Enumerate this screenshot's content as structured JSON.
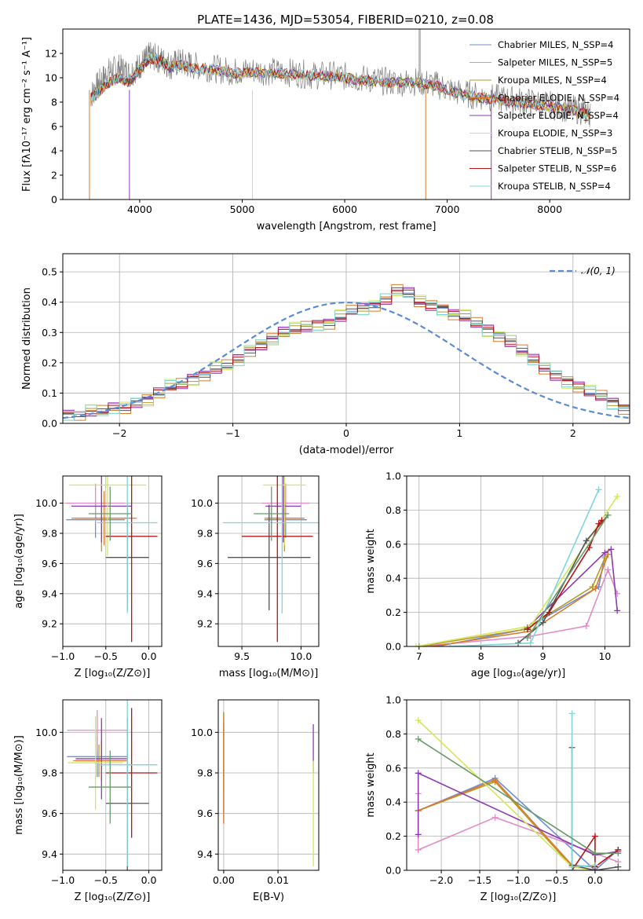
{
  "figure_title": "PLATE=1436, MJD=53054, FIBERID=0210, z=0.08",
  "colors": [
    "#6f8fd6",
    "#e28bc6",
    "#b59a2a",
    "#d97b2c",
    "#8e3bb3",
    "#d6e65a",
    "#555555",
    "#b01818",
    "#7ed6dc",
    "#6a9a6a"
  ],
  "chart_data": [
    {
      "id": "spectrum",
      "type": "line",
      "xlabel": "wavelength [Angstrom, rest frame]",
      "ylabel": "Flux [fλ10⁻¹⁷ erg cm⁻² s⁻¹ A⁻¹]",
      "xlim": [
        3250,
        8780
      ],
      "ylim": [
        0,
        14
      ],
      "xticks": [
        4000,
        5000,
        6000,
        7000,
        8000
      ],
      "yticks": [
        0,
        2,
        4,
        6,
        8,
        10,
        12
      ],
      "grid": false,
      "legend_position": "top-right",
      "legend": [
        "Chabrier MILES, N_SSP=4",
        "Salpeter MILES, N_SSP=5",
        "Kroupa MILES, N_SSP=4",
        "Chabrier ELODIE, N_SSP=4",
        "Salpeter ELODIE, N_SSP=4",
        "Kroupa ELODIE, N_SSP=3",
        "Chabrier STELIB, N_SSP=5",
        "Salpeter STELIB, N_SSP=6",
        "Kroupa STELIB, N_SSP=4"
      ],
      "data_curve": {
        "x": [
          3520,
          3600,
          3700,
          3800,
          3900,
          4000,
          4100,
          4200,
          4300,
          4400,
          4500,
          4700,
          4900,
          5100,
          5300,
          5500,
          5700,
          5900,
          6100,
          6300,
          6500,
          6700,
          6900,
          7100,
          7300,
          7500,
          7700,
          7900,
          8100,
          8300,
          8400
        ],
        "y": [
          8.5,
          9.5,
          10.5,
          10.8,
          10.3,
          11.0,
          11.8,
          11.5,
          11.0,
          11.3,
          11.0,
          10.8,
          10.5,
          10.6,
          10.5,
          10.4,
          10.2,
          10.2,
          10.0,
          9.8,
          9.6,
          9.7,
          9.4,
          8.8,
          8.5,
          8.3,
          8.1,
          7.9,
          7.6,
          7.3,
          7.1
        ]
      },
      "model_curve": {
        "x": [
          3520,
          3600,
          3700,
          3800,
          3900,
          4000,
          4100,
          4200,
          4300,
          4400,
          4500,
          4700,
          4900,
          5100,
          5300,
          5500,
          5700,
          5900,
          6100,
          6300,
          6500,
          6700,
          6900,
          7100,
          7300,
          7500,
          7700,
          7900,
          8100,
          8300,
          8400
        ],
        "y": [
          8.3,
          8.8,
          9.6,
          10.0,
          9.6,
          10.7,
          11.6,
          11.4,
          10.9,
          11.1,
          10.8,
          10.7,
          10.4,
          10.4,
          10.4,
          10.3,
          10.2,
          10.1,
          9.9,
          9.7,
          9.6,
          9.6,
          9.3,
          8.7,
          8.4,
          8.2,
          8.0,
          7.8,
          7.5,
          7.2,
          7.0
        ]
      }
    },
    {
      "id": "residuals",
      "type": "step",
      "xlabel": "(data-model)/error",
      "ylabel": "Normed distribution",
      "xlim": [
        -2.5,
        2.5
      ],
      "ylim": [
        0,
        0.56
      ],
      "xticks": [
        -2,
        -1,
        0,
        1,
        2
      ],
      "yticks": [
        0.0,
        0.1,
        0.2,
        0.3,
        0.4,
        0.5
      ],
      "grid": true,
      "legend_position": "top-right",
      "legend": [
        "𝒩(0, 1)"
      ],
      "bin_edges_start": -2.5,
      "bin_width": 0.1,
      "values": [
        0.03,
        0.03,
        0.04,
        0.04,
        0.05,
        0.05,
        0.07,
        0.08,
        0.1,
        0.12,
        0.13,
        0.15,
        0.16,
        0.18,
        0.19,
        0.21,
        0.24,
        0.26,
        0.28,
        0.3,
        0.31,
        0.32,
        0.33,
        0.33,
        0.35,
        0.37,
        0.38,
        0.39,
        0.41,
        0.44,
        0.43,
        0.4,
        0.39,
        0.38,
        0.36,
        0.35,
        0.33,
        0.31,
        0.29,
        0.27,
        0.24,
        0.21,
        0.18,
        0.16,
        0.14,
        0.12,
        0.1,
        0.09,
        0.07,
        0.05,
        0.04
      ],
      "series_offsets": [
        0.0,
        0.015,
        -0.012,
        0.02,
        -0.018,
        0.025,
        -0.008,
        0.01,
        -0.022
      ]
    },
    {
      "id": "age-vs-Z",
      "type": "errorbar",
      "xlabel": "Z [log₁₀(Z/Z⊙)]",
      "ylabel": "age  [log₁₀(age/yr)]",
      "xlim": [
        -1.0,
        0.15
      ],
      "ylim": [
        9.05,
        10.18
      ],
      "xticks": [
        -1.0,
        -0.5,
        0.0
      ],
      "yticks": [
        9.2,
        9.4,
        9.6,
        9.8,
        10.0
      ],
      "grid": true,
      "points": [
        {
          "x": -0.62,
          "xerr": 0.34,
          "y": 9.89,
          "yerr": 0.12
        },
        {
          "x": -0.62,
          "xerr": 0.34,
          "y": 10.0,
          "yerr": 0.13
        },
        {
          "x": -0.55,
          "xerr": 0.3,
          "y": 9.9,
          "yerr": 0.22
        },
        {
          "x": -0.52,
          "xerr": 0.38,
          "y": 9.9,
          "yerr": 0.18
        },
        {
          "x": -0.55,
          "xerr": 0.35,
          "y": 9.98,
          "yerr": 0.24
        },
        {
          "x": -0.48,
          "xerr": 0.45,
          "y": 10.12,
          "yerr": 0.47
        },
        {
          "x": -0.25,
          "xerr": 0.25,
          "y": 9.64,
          "yerr": 0.35
        },
        {
          "x": -0.2,
          "xerr": 0.3,
          "y": 9.78,
          "yerr": 0.7
        },
        {
          "x": -0.25,
          "xerr": 0.35,
          "y": 9.87,
          "yerr": 0.6
        },
        {
          "x": -0.45,
          "xerr": 0.25,
          "y": 9.93,
          "yerr": 0.18
        }
      ]
    },
    {
      "id": "age-vs-mass",
      "type": "errorbar",
      "xlabel": "mass [log₁₀(M/M⊙)]",
      "ylabel": "",
      "xlim": [
        9.3,
        10.15
      ],
      "ylim": [
        9.05,
        10.18
      ],
      "xticks": [
        9.5,
        10.0
      ],
      "yticks": [
        9.2,
        9.4,
        9.6,
        9.8,
        10.0
      ],
      "grid": true,
      "points": [
        {
          "x": 9.87,
          "xerr": 0.18,
          "y": 9.89,
          "yerr": 0.12
        },
        {
          "x": 9.87,
          "xerr": 0.2,
          "y": 10.0,
          "yerr": 0.13
        },
        {
          "x": 9.86,
          "xerr": 0.15,
          "y": 9.9,
          "yerr": 0.22
        },
        {
          "x": 9.86,
          "xerr": 0.17,
          "y": 9.9,
          "yerr": 0.18
        },
        {
          "x": 9.85,
          "xerr": 0.15,
          "y": 9.98,
          "yerr": 0.24
        },
        {
          "x": 9.86,
          "xerr": 0.18,
          "y": 10.12,
          "yerr": 0.4
        },
        {
          "x": 9.73,
          "xerr": 0.35,
          "y": 9.64,
          "yerr": 0.35
        },
        {
          "x": 9.8,
          "xerr": 0.3,
          "y": 9.78,
          "yerr": 0.7
        },
        {
          "x": 9.84,
          "xerr": 0.5,
          "y": 9.87,
          "yerr": 0.6
        },
        {
          "x": 9.75,
          "xerr": 0.15,
          "y": 9.93,
          "yerr": 0.18
        }
      ]
    },
    {
      "id": "weight-vs-age",
      "type": "line",
      "xlabel": "age  [log₁₀(age/yr)]",
      "ylabel": "mass weight",
      "xlim": [
        6.8,
        10.4
      ],
      "ylim": [
        0,
        1.0
      ],
      "xticks": [
        7,
        8,
        9,
        10
      ],
      "yticks": [
        0.0,
        0.2,
        0.4,
        0.6,
        0.8,
        1.0
      ],
      "grid": true,
      "series": [
        {
          "x": [
            7.3,
            8.7,
            9.9,
            10.0
          ],
          "y": [
            0.0,
            0.1,
            0.35,
            0.53
          ]
        },
        {
          "x": [
            7.0,
            8.8,
            9.7,
            10.05,
            10.2
          ],
          "y": [
            0.0,
            0.06,
            0.12,
            0.45,
            0.31
          ]
        },
        {
          "x": [
            7.0,
            8.7,
            9.8,
            10.0
          ],
          "y": [
            0.0,
            0.1,
            0.35,
            0.52
          ]
        },
        {
          "x": [
            7.2,
            8.8,
            9.85,
            10.05
          ],
          "y": [
            0.0,
            0.09,
            0.34,
            0.54
          ]
        },
        {
          "x": [
            8.75,
            10.0,
            10.1,
            10.2
          ],
          "y": [
            0.11,
            0.55,
            0.57,
            0.21
          ]
        },
        {
          "x": [
            6.95,
            8.8,
            10.2
          ],
          "y": [
            0.0,
            0.12,
            0.88
          ]
        },
        {
          "x": [
            8.6,
            9.0,
            9.7,
            10.05
          ],
          "y": [
            0.02,
            0.14,
            0.62,
            0.77
          ]
        },
        {
          "x": [
            8.75,
            9.1,
            9.75,
            9.9,
            9.95
          ],
          "y": [
            0.1,
            0.2,
            0.58,
            0.72,
            0.74
          ]
        },
        {
          "x": [
            7.5,
            8.8,
            9.9
          ],
          "y": [
            0.0,
            0.02,
            0.92
          ]
        },
        {
          "x": [
            8.75,
            10.05
          ],
          "y": [
            0.05,
            0.77
          ]
        }
      ]
    },
    {
      "id": "mass-vs-Z",
      "type": "errorbar",
      "xlabel": "Z [log₁₀(Z/Z⊙)]",
      "ylabel": "mass [log₁₀(M/M⊙)]",
      "xlim": [
        -1.0,
        0.15
      ],
      "ylim": [
        9.32,
        10.16
      ],
      "xticks": [
        -1.0,
        -0.5,
        0.0
      ],
      "yticks": [
        9.4,
        9.6,
        9.8,
        10.0
      ],
      "grid": true,
      "points": [
        {
          "x": -0.6,
          "xerr": 0.35,
          "y": 9.88,
          "yerr": 0.1
        },
        {
          "x": -0.6,
          "xerr": 0.35,
          "y": 10.01,
          "yerr": 0.1
        },
        {
          "x": -0.58,
          "xerr": 0.3,
          "y": 9.86,
          "yerr": 0.08
        },
        {
          "x": -0.55,
          "xerr": 0.3,
          "y": 9.86,
          "yerr": 0.1
        },
        {
          "x": -0.55,
          "xerr": 0.3,
          "y": 9.87,
          "yerr": 0.2
        },
        {
          "x": -0.62,
          "xerr": 0.32,
          "y": 9.85,
          "yerr": 0.23
        },
        {
          "x": -0.25,
          "xerr": 0.25,
          "y": 9.65,
          "yerr": 0.42
        },
        {
          "x": -0.2,
          "xerr": 0.3,
          "y": 9.8,
          "yerr": 0.32
        },
        {
          "x": -0.25,
          "xerr": 0.35,
          "y": 9.84,
          "yerr": 0.5
        },
        {
          "x": -0.45,
          "xerr": 0.25,
          "y": 9.73,
          "yerr": 0.18
        }
      ]
    },
    {
      "id": "mass-vs-ebv",
      "type": "errorbar",
      "xlabel": "E(B-V)",
      "ylabel": "",
      "xlim": [
        -0.001,
        0.0175
      ],
      "ylim": [
        9.32,
        10.16
      ],
      "xticks": [
        0.0,
        0.01
      ],
      "yticks": [
        9.4,
        9.6,
        9.8,
        10.0
      ],
      "grid": true,
      "points": [
        {
          "x": 0.0,
          "xerr": 0.0,
          "y": 9.85,
          "yerr": 0.25
        },
        {
          "x": 0.0,
          "xerr": 0.0,
          "y": 9.82,
          "yerr": 0.27
        },
        {
          "x": 0.0,
          "xerr": 0.0,
          "y": 9.9,
          "yerr": 0.2
        },
        {
          "x": 0.0,
          "xerr": 0.0,
          "y": 9.8,
          "yerr": 0.25
        },
        {
          "x": 0.0165,
          "xerr": 0.0,
          "y": 9.92,
          "yerr": 0.12
        },
        {
          "x": 0.0165,
          "xerr": 0.0,
          "y": 9.6,
          "yerr": 0.26
        }
      ]
    },
    {
      "id": "weight-vs-Z",
      "type": "line",
      "xlabel": "Z [log₁₀(Z/Z⊙)]",
      "ylabel": "mass weight",
      "xlim": [
        -2.45,
        0.45
      ],
      "ylim": [
        0,
        1.0
      ],
      "xticks": [
        -2.0,
        -1.5,
        -1.0,
        -0.5,
        0.0
      ],
      "yticks": [
        0.0,
        0.2,
        0.4,
        0.6,
        0.8,
        1.0
      ],
      "grid": true,
      "series": [
        {
          "x": [
            -2.3,
            -1.3,
            0.0,
            0.3
          ],
          "y": [
            0.35,
            0.54,
            0.0,
            0.12
          ]
        },
        {
          "x": [
            -2.3,
            -2.3,
            -1.3,
            0.0,
            0.3
          ],
          "y": [
            0.45,
            0.12,
            0.31,
            0.1,
            0.05
          ]
        },
        {
          "x": [
            -2.3,
            -1.3,
            -0.3,
            0.0
          ],
          "y": [
            0.35,
            0.52,
            0.02,
            0.03
          ]
        },
        {
          "x": [
            -2.3,
            -1.3,
            -0.3,
            0.0
          ],
          "y": [
            0.35,
            0.53,
            0.03,
            0.02
          ]
        },
        {
          "x": [
            -2.3,
            -2.3,
            0.0,
            0.3
          ],
          "y": [
            0.21,
            0.57,
            0.09,
            0.11
          ]
        },
        {
          "x": [
            -2.3,
            -0.3,
            0.0
          ],
          "y": [
            0.88,
            0.02,
            0.0
          ]
        },
        {
          "x": [
            -0.3,
            -0.3,
            0.0,
            0.3
          ],
          "y": [
            0.72,
            0.03,
            0.0,
            0.02
          ]
        },
        {
          "x": [
            -0.3,
            0.0,
            0.0,
            0.3
          ],
          "y": [
            0.0,
            0.2,
            0.02,
            0.12
          ]
        },
        {
          "x": [
            -0.3,
            -0.3,
            0.0
          ],
          "y": [
            0.92,
            0.02,
            0.03
          ]
        },
        {
          "x": [
            -2.3,
            0.0,
            0.3
          ],
          "y": [
            0.77,
            0.1,
            0.1
          ]
        }
      ]
    }
  ]
}
